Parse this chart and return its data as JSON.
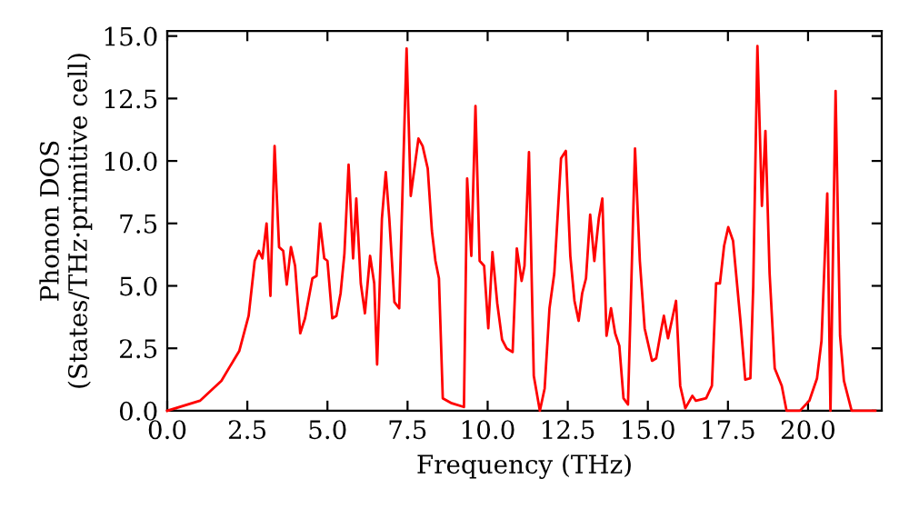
{
  "chart_data": {
    "type": "line",
    "xlabel": "Frequency (THz)",
    "ylabel": "Phonon DOS\n(States/THz·primitive cell)",
    "xlim": [
      0,
      22.3
    ],
    "ylim": [
      0,
      15.2
    ],
    "xticks": [
      {
        "value": 0,
        "label": "0.0"
      },
      {
        "value": 2.5,
        "label": "2.5"
      },
      {
        "value": 5,
        "label": "5.0"
      },
      {
        "value": 7.5,
        "label": "7.5"
      },
      {
        "value": 10,
        "label": "10.0"
      },
      {
        "value": 12.5,
        "label": "12.5"
      },
      {
        "value": 15,
        "label": "15.0"
      },
      {
        "value": 17.5,
        "label": "17.5"
      },
      {
        "value": 20,
        "label": "20.0"
      }
    ],
    "yticks": [
      {
        "value": 0,
        "label": "0.0"
      },
      {
        "value": 2.5,
        "label": "2.5"
      },
      {
        "value": 5,
        "label": "5.0"
      },
      {
        "value": 7.5,
        "label": "7.5"
      },
      {
        "value": 10,
        "label": "10.0"
      },
      {
        "value": 12.5,
        "label": "12.5"
      },
      {
        "value": 15,
        "label": "15.0"
      }
    ],
    "grid": false,
    "marker": "none",
    "line_style": "solid",
    "series": [
      {
        "color": "#ff0000",
        "x": [
          0,
          1.02,
          1.69,
          2.25,
          2.54,
          2.73,
          2.86,
          2.97,
          3.1,
          3.22,
          3.35,
          3.49,
          3.62,
          3.73,
          3.86,
          3.99,
          4.15,
          4.3,
          4.53,
          4.66,
          4.77,
          4.9,
          5.0,
          5.15,
          5.28,
          5.41,
          5.53,
          5.66,
          5.8,
          5.9,
          6.04,
          6.17,
          6.33,
          6.46,
          6.55,
          6.7,
          6.82,
          6.93,
          7.09,
          7.24,
          7.47,
          7.6,
          7.84,
          7.97,
          8.13,
          8.26,
          8.37,
          8.48,
          8.6,
          8.88,
          9.26,
          9.36,
          9.49,
          9.62,
          9.75,
          9.89,
          10.02,
          10.15,
          10.3,
          10.45,
          10.59,
          10.78,
          10.91,
          11.06,
          11.15,
          11.29,
          11.44,
          11.63,
          11.78,
          11.93,
          12.08,
          12.29,
          12.44,
          12.58,
          12.71,
          12.84,
          12.95,
          13.07,
          13.2,
          13.33,
          13.47,
          13.58,
          13.71,
          13.85,
          13.98,
          14.11,
          14.24,
          14.38,
          14.6,
          14.75,
          14.9,
          15.13,
          15.26,
          15.41,
          15.5,
          15.63,
          15.88,
          16.01,
          16.17,
          16.39,
          16.5,
          16.82,
          17.0,
          17.13,
          17.25,
          17.38,
          17.51,
          17.66,
          17.89,
          18.04,
          18.2,
          18.29,
          18.42,
          18.56,
          18.67,
          18.8,
          18.96,
          19.18,
          19.33,
          19.75,
          20.04,
          20.28,
          20.42,
          20.6,
          20.7,
          20.86,
          21.0,
          21.12,
          21.36,
          22.1
        ],
        "values": [
          0,
          0.4,
          1.2,
          2.4,
          3.8,
          6.0,
          6.4,
          6.1,
          7.5,
          4.6,
          10.6,
          6.55,
          6.4,
          5.05,
          6.55,
          5.8,
          3.1,
          3.7,
          5.3,
          5.4,
          7.5,
          6.1,
          6.0,
          3.7,
          3.8,
          4.7,
          6.3,
          9.85,
          6.1,
          8.5,
          5.1,
          3.9,
          6.2,
          5.1,
          1.85,
          7.7,
          9.55,
          7.7,
          4.35,
          4.1,
          14.5,
          8.6,
          10.9,
          10.6,
          9.7,
          7.2,
          6.0,
          5.3,
          0.5,
          0.3,
          0.15,
          9.3,
          6.2,
          12.2,
          6.0,
          5.8,
          3.3,
          6.35,
          4.3,
          2.85,
          2.5,
          2.35,
          6.5,
          5.2,
          5.8,
          10.35,
          1.4,
          0,
          0.9,
          4.1,
          5.5,
          10.1,
          10.4,
          6.2,
          4.4,
          3.6,
          4.7,
          5.3,
          7.85,
          6.0,
          7.7,
          8.5,
          3.0,
          4.1,
          3.1,
          2.6,
          0.5,
          0.25,
          10.5,
          6.0,
          3.3,
          2.0,
          2.1,
          3.2,
          3.8,
          2.9,
          4.4,
          1.0,
          0.1,
          0.6,
          0.4,
          0.5,
          1.0,
          5.1,
          5.1,
          6.6,
          7.35,
          6.8,
          3.6,
          1.25,
          1.3,
          5.0,
          14.6,
          8.2,
          11.2,
          5.5,
          1.7,
          1.0,
          0,
          0,
          0.4,
          1.3,
          2.8,
          8.7,
          0,
          12.8,
          3.0,
          1.2,
          0,
          0
        ]
      }
    ]
  }
}
